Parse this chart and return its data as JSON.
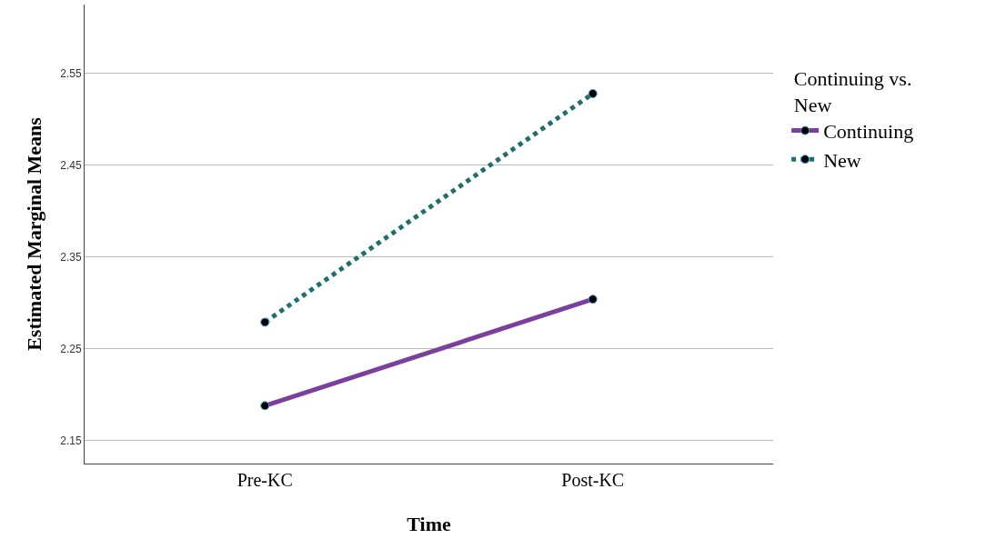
{
  "chart_data": {
    "type": "line",
    "xlabel": "Time",
    "ylabel": "Estimated Marginal Means",
    "legend_title": "Continuing vs. New",
    "categories": [
      "Pre-KC",
      "Post-KC"
    ],
    "series": [
      {
        "name": "Continuing",
        "color": "#7b3f9e",
        "values": [
          2.188,
          2.304
        ],
        "line_style": "solid"
      },
      {
        "name": "New",
        "color": "#1f6f6f",
        "values": [
          2.279,
          2.528
        ],
        "line_style": "dotted"
      }
    ],
    "ylim": [
      2.125,
      2.625
    ],
    "yticks": [
      2.15,
      2.25,
      2.35,
      2.45,
      2.55
    ],
    "grid": "y",
    "legend": "right",
    "marker": "circle"
  }
}
